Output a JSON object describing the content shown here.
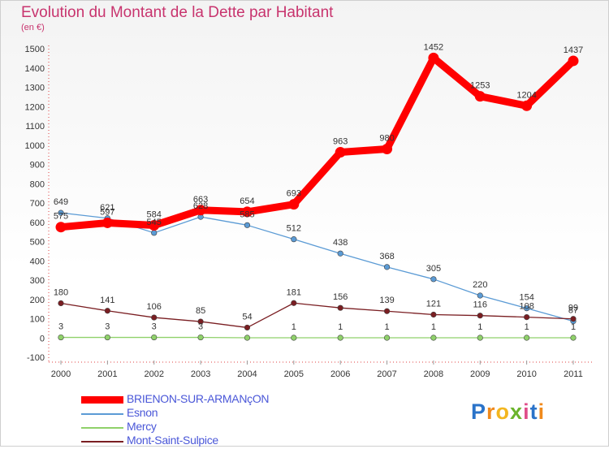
{
  "title": "Evolution du Montant de la Dette par Habitant",
  "unit": "(en €)",
  "logo": {
    "letters": [
      "P",
      "r",
      "o",
      "x",
      "i",
      "t",
      "i"
    ],
    "colors": [
      "#2a73c9",
      "#f08a1c",
      "#f3b61f",
      "#6bb42c",
      "#e04e8a",
      "#2a73c9",
      "#f08a1c"
    ]
  },
  "chart_data": {
    "type": "line",
    "x": [
      "2000",
      "2001",
      "2002",
      "2003",
      "2004",
      "2005",
      "2006",
      "2007",
      "2008",
      "2009",
      "2010",
      "2011"
    ],
    "ylim": [
      -100,
      1500
    ],
    "yticks": [
      -100,
      0,
      100,
      200,
      300,
      400,
      500,
      600,
      700,
      800,
      900,
      1000,
      1100,
      1200,
      1300,
      1400,
      1500
    ],
    "grid": false,
    "legend_position": "bottom-left",
    "series": [
      {
        "name": "Esnon",
        "color": "#5b9bd5",
        "values": [
          649,
          621,
          545,
          628,
          585,
          512,
          438,
          368,
          305,
          220,
          154,
          87
        ],
        "labels": [
          "649",
          "621",
          "545",
          "628",
          "585",
          "512",
          "438",
          "368",
          "305",
          "220",
          "154",
          "87"
        ]
      },
      {
        "name": "Mercy",
        "color": "#8fd16a",
        "values": [
          3,
          3,
          3,
          3,
          1,
          1,
          1,
          1,
          1,
          1,
          1,
          1
        ],
        "labels": [
          "3",
          "3",
          "3",
          "3",
          "",
          "1",
          "1",
          "1",
          "1",
          "1",
          "1",
          "1"
        ]
      },
      {
        "name": "Mont-Saint-Sulpice",
        "color": "#7a1e22",
        "values": [
          180,
          141,
          106,
          85,
          54,
          181,
          156,
          139,
          121,
          116,
          108,
          99
        ],
        "labels": [
          "180",
          "141",
          "106",
          "85",
          "54",
          "181",
          "156",
          "139",
          "121",
          "116",
          "108",
          "99"
        ]
      },
      {
        "name": "BRIENON-SUR-ARMANçON",
        "color": "#ff0000",
        "values": [
          575,
          597,
          584,
          663,
          654,
          693,
          963,
          980,
          1452,
          1253,
          1204,
          1437
        ],
        "labels": [
          "575",
          "597",
          "584",
          "663",
          "654",
          "693",
          "963",
          "980",
          "1452",
          "1253",
          "1204",
          "1437"
        ]
      }
    ],
    "legend_order": [
      3,
      0,
      1,
      2
    ]
  }
}
